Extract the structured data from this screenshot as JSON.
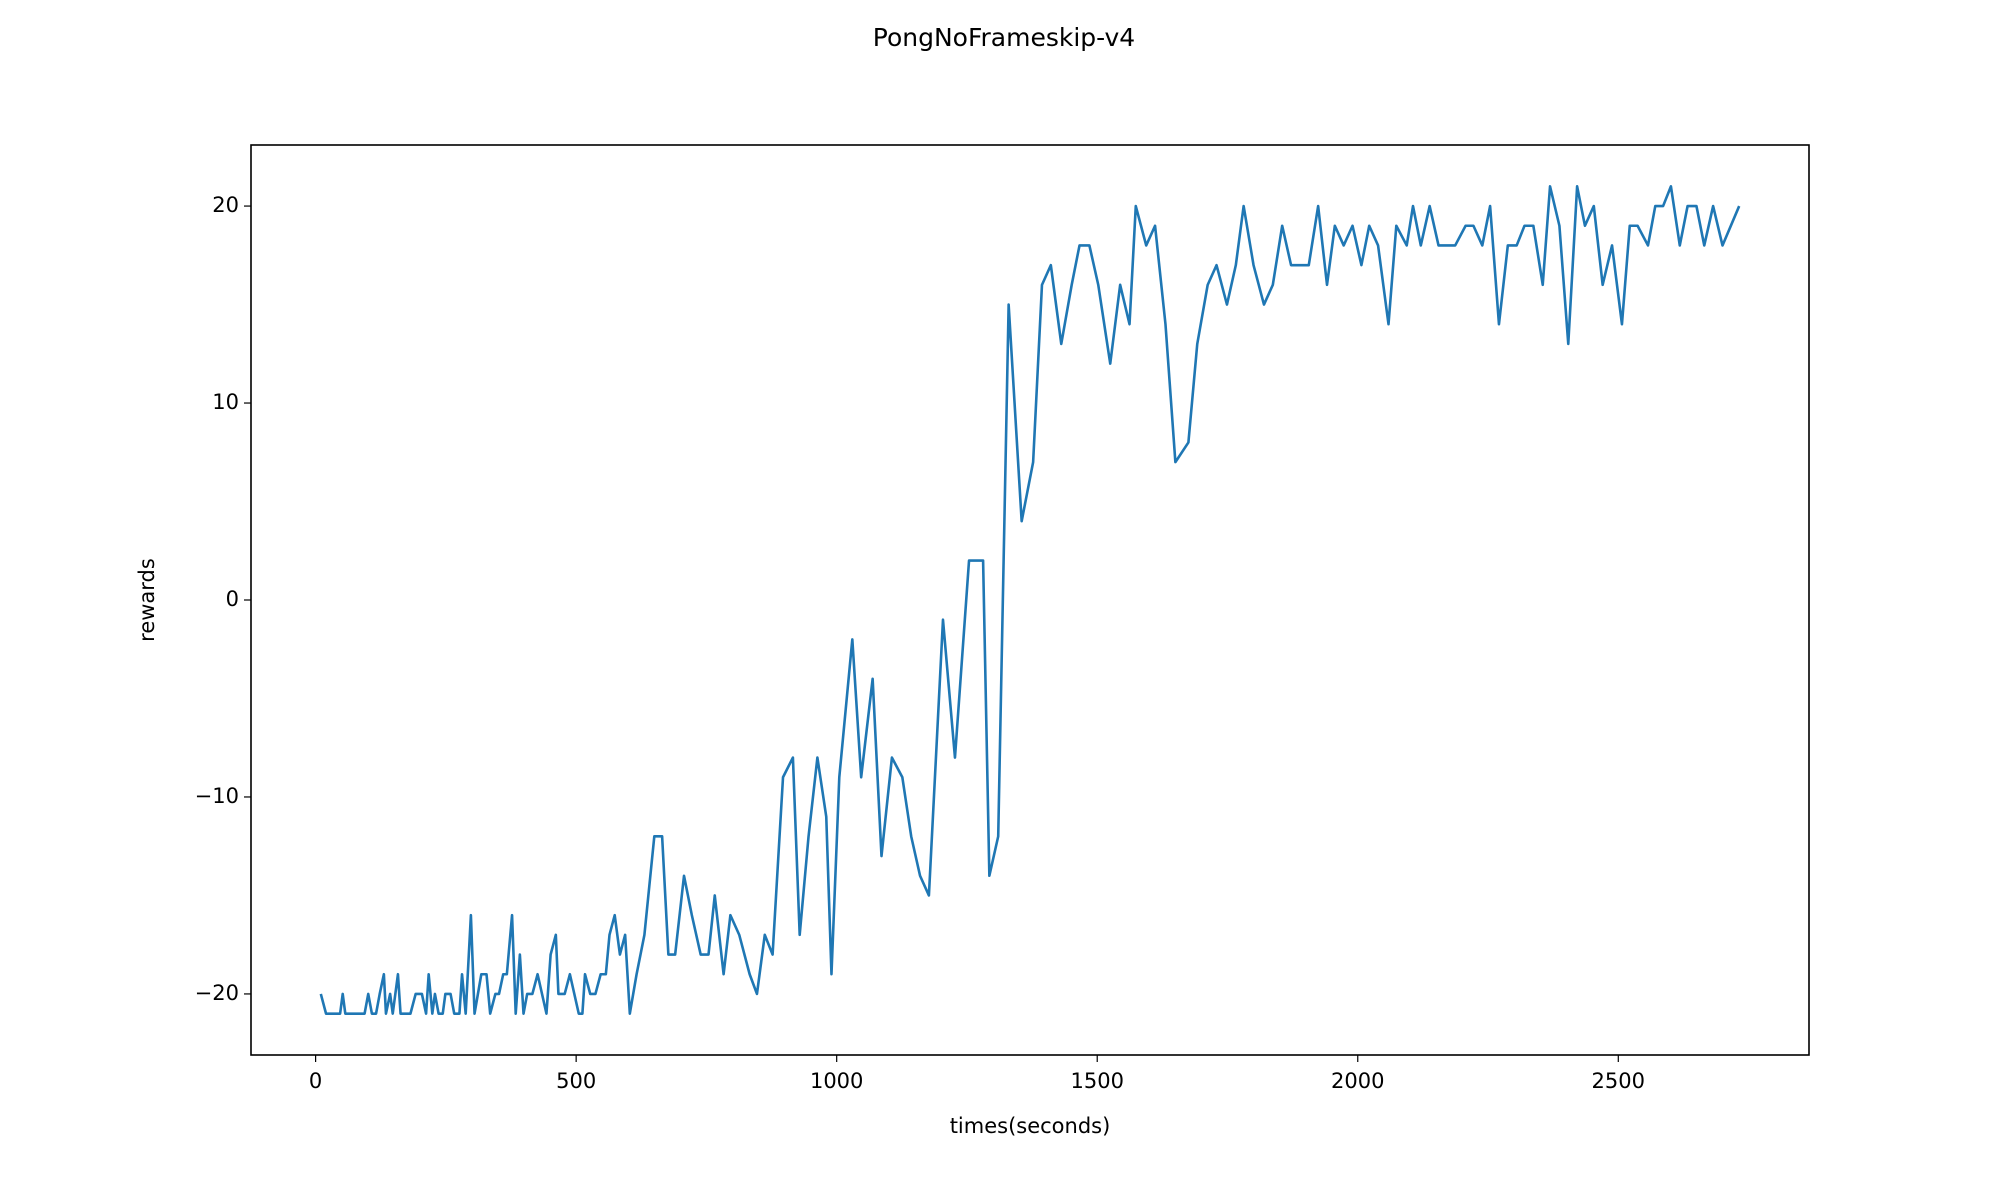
{
  "chart_data": {
    "type": "line",
    "title": "PongNoFrameskip-v4",
    "x_label": "times(seconds)",
    "y_label": "rewards",
    "x": [
      10,
      20,
      47,
      52,
      57,
      94,
      101,
      108,
      116,
      123,
      131,
      135,
      143,
      148,
      158,
      163,
      182,
      192,
      204,
      212,
      217,
      224,
      229,
      236,
      244,
      249,
      259,
      266,
      276,
      281,
      288,
      298,
      305,
      318,
      328,
      335,
      345,
      352,
      360,
      367,
      377,
      384,
      392,
      399,
      406,
      416,
      426,
      443,
      451,
      461,
      466,
      478,
      488,
      505,
      512,
      517,
      527,
      537,
      547,
      557,
      564,
      574,
      584,
      594,
      603,
      616,
      631,
      650,
      665,
      677,
      690,
      707,
      722,
      739,
      754,
      766,
      783,
      796,
      813,
      833,
      847,
      862,
      877,
      897,
      916,
      929,
      946,
      963,
      980,
      990,
      1005,
      1030,
      1047,
      1069,
      1086,
      1106,
      1126,
      1143,
      1160,
      1177,
      1204,
      1227,
      1254,
      1281,
      1293,
      1310,
      1330,
      1355,
      1377,
      1394,
      1411,
      1431,
      1451,
      1466,
      1485,
      1502,
      1525,
      1544,
      1562,
      1574,
      1594,
      1611,
      1631,
      1650,
      1675,
      1692,
      1712,
      1729,
      1749,
      1766,
      1781,
      1800,
      1820,
      1837,
      1855,
      1872,
      1906,
      1924,
      1941,
      1956,
      1973,
      1990,
      2007,
      2022,
      2039,
      2059,
      2074,
      2094,
      2106,
      2121,
      2138,
      2155,
      2187,
      2207,
      2222,
      2239,
      2254,
      2271,
      2288,
      2305,
      2320,
      2337,
      2355,
      2369,
      2387,
      2404,
      2421,
      2436,
      2453,
      2470,
      2488,
      2507,
      2522,
      2537,
      2557,
      2571,
      2586,
      2601,
      2618,
      2633,
      2650,
      2665,
      2682,
      2700,
      2732
    ],
    "series": [
      {
        "name": "rewards",
        "color": "#1f77b4",
        "values": [
          -20,
          -21,
          -21,
          -20,
          -21,
          -21,
          -20,
          -21,
          -21,
          -20,
          -19,
          -21,
          -20,
          -21,
          -19,
          -21,
          -21,
          -20,
          -20,
          -21,
          -19,
          -21,
          -20,
          -21,
          -21,
          -20,
          -20,
          -21,
          -21,
          -19,
          -21,
          -16,
          -21,
          -19,
          -19,
          -21,
          -20,
          -20,
          -19,
          -19,
          -16,
          -21,
          -18,
          -21,
          -20,
          -20,
          -19,
          -21,
          -18,
          -17,
          -20,
          -20,
          -19,
          -21,
          -21,
          -19,
          -20,
          -20,
          -19,
          -19,
          -17,
          -16,
          -18,
          -17,
          -21,
          -19,
          -17,
          -12,
          -12,
          -18,
          -18,
          -14,
          -16,
          -18,
          -18,
          -15,
          -19,
          -16,
          -17,
          -19,
          -20,
          -17,
          -18,
          -9,
          -8,
          -17,
          -12,
          -8,
          -11,
          -19,
          -9,
          -2,
          -9,
          -4,
          -13,
          -8,
          -9,
          -12,
          -14,
          -15,
          -1,
          -8,
          2,
          2,
          -14,
          -12,
          15,
          4,
          7,
          16,
          17,
          13,
          16,
          18,
          18,
          16,
          12,
          16,
          14,
          20,
          18,
          19,
          14,
          7,
          8,
          13,
          16,
          17,
          15,
          17,
          20,
          17,
          15,
          16,
          19,
          17,
          17,
          20,
          16,
          19,
          18,
          19,
          17,
          19,
          18,
          14,
          19,
          18,
          20,
          18,
          20,
          18,
          18,
          19,
          19,
          18,
          20,
          14,
          18,
          18,
          19,
          19,
          16,
          21,
          19,
          13,
          21,
          19,
          20,
          16,
          18,
          14,
          19,
          19,
          18,
          20,
          20,
          21,
          18,
          20,
          20,
          18,
          20,
          18,
          20
        ]
      }
    ],
    "xlim": [
      -124,
      2866
    ],
    "ylim": [
      -23.1,
      23.1
    ],
    "xticks": [
      0,
      500,
      1000,
      1500,
      2000,
      2500
    ],
    "yticks": [
      {
        "value": -20,
        "label": "−20"
      },
      {
        "value": -10,
        "label": "−10"
      },
      0,
      10,
      20
    ],
    "grid": false
  }
}
